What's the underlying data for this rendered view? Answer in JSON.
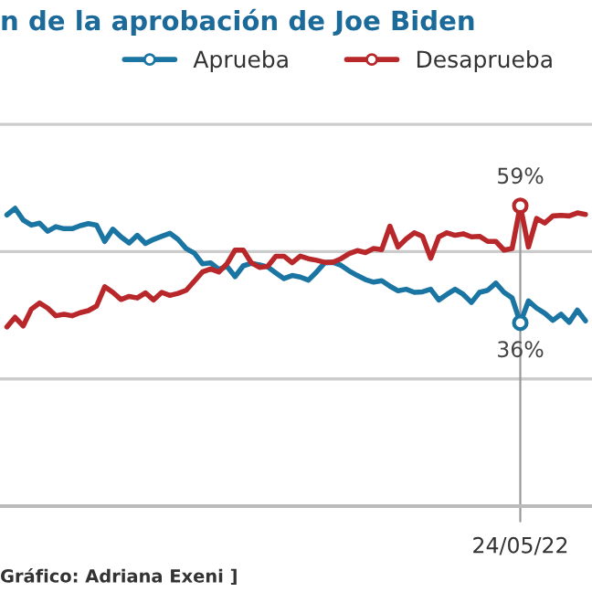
{
  "chart_data": {
    "type": "line",
    "title": "n de la aprobación de Joe Biden",
    "categories": [
      null,
      null,
      null,
      null,
      null,
      null,
      null,
      null,
      null,
      null,
      null,
      null,
      null,
      null,
      null,
      null,
      null,
      null,
      null,
      null,
      null,
      null,
      null,
      null,
      null,
      null,
      null,
      null,
      null,
      null,
      null,
      null,
      null,
      null,
      null,
      null,
      null,
      null,
      null,
      null,
      null,
      null,
      null,
      null,
      null,
      null,
      null,
      null,
      null,
      null,
      null,
      null,
      null,
      null,
      null,
      null,
      null,
      null,
      null,
      null,
      null,
      null,
      null,
      null,
      null,
      null,
      null,
      null,
      null,
      null,
      null,
      null
    ],
    "series": [
      {
        "name": "Aprueba",
        "color": "#1b75a3",
        "values": [
          57.2,
          58.5,
          56.2,
          55.2,
          55.6,
          54.0,
          54.9,
          54.5,
          54.5,
          55.1,
          55.5,
          55.2,
          52.0,
          54.4,
          52.9,
          51.7,
          53.2,
          51.6,
          52.4,
          53.0,
          53.6,
          52.4,
          50.6,
          49.7,
          47.6,
          47.8,
          46.5,
          47.1,
          45.1,
          47.2,
          47.7,
          47.4,
          47.0,
          45.8,
          44.7,
          45.3,
          45.0,
          44.4,
          46.0,
          47.8,
          47.9,
          47.3,
          46.2,
          45.3,
          44.5,
          44.0,
          44.3,
          43.2,
          42.3,
          42.6,
          42.0,
          42.1,
          42.6,
          40.5,
          41.6,
          42.6,
          41.6,
          40.0,
          42.0,
          42.4,
          43.8,
          42.0,
          40.9,
          36,
          40.3,
          38.9,
          37.9,
          36.5,
          37.7,
          36.1,
          38.5,
          36.4
        ],
        "value_labels": [
          null,
          null,
          null,
          null,
          null,
          null,
          null,
          null,
          null,
          null,
          null,
          null,
          null,
          null,
          null,
          null,
          null,
          null,
          null,
          null,
          null,
          null,
          null,
          null,
          null,
          null,
          null,
          null,
          null,
          null,
          null,
          null,
          null,
          null,
          null,
          null,
          null,
          null,
          null,
          null,
          null,
          null,
          null,
          null,
          null,
          null,
          null,
          null,
          null,
          null,
          null,
          null,
          null,
          null,
          null,
          null,
          null,
          null,
          null,
          null,
          null,
          null,
          null,
          "36%",
          null,
          null,
          null,
          null,
          null,
          null,
          null,
          null
        ]
      },
      {
        "name": "Desaprueba",
        "color": "#b8282a",
        "values": [
          35.2,
          37.1,
          35.4,
          38.7,
          39.9,
          38.9,
          37.4,
          37.7,
          37.4,
          38.0,
          38.4,
          39.3,
          43.1,
          42.0,
          40.6,
          41.2,
          40.9,
          41.9,
          40.5,
          42.0,
          41.4,
          41.8,
          42.4,
          44.2,
          46.0,
          46.6,
          46.0,
          47.6,
          50.3,
          50.3,
          47.8,
          46.9,
          47.1,
          49.1,
          49.1,
          47.8,
          49.1,
          48.6,
          48.3,
          47.9,
          47.9,
          48.6,
          49.6,
          50.2,
          49.8,
          50.6,
          50.4,
          55.0,
          50.9,
          52.5,
          53.7,
          53.0,
          48.7,
          52.9,
          53.7,
          53.2,
          53.5,
          52.9,
          53.0,
          52.0,
          52.0,
          50.3,
          50.6,
          59,
          50.9,
          56.5,
          55.6,
          57.0,
          57.1,
          57.0,
          57.6,
          57.3
        ],
        "value_labels": [
          null,
          null,
          null,
          null,
          null,
          null,
          null,
          null,
          null,
          null,
          null,
          null,
          null,
          null,
          null,
          null,
          null,
          null,
          null,
          null,
          null,
          null,
          null,
          null,
          null,
          null,
          null,
          null,
          null,
          null,
          null,
          null,
          null,
          null,
          null,
          null,
          null,
          null,
          null,
          null,
          null,
          null,
          null,
          null,
          null,
          null,
          null,
          null,
          null,
          null,
          null,
          null,
          null,
          null,
          null,
          null,
          null,
          null,
          null,
          null,
          null,
          null,
          null,
          "59%",
          null,
          null,
          null,
          null,
          null,
          null,
          null,
          null
        ]
      }
    ],
    "ylim": [
      0,
      75
    ],
    "ref_lines": [
      {
        "axis": "y",
        "value": 25,
        "color": "#cccccc"
      },
      {
        "axis": "y",
        "value": 50,
        "color": "#cccccc"
      },
      {
        "axis": "y",
        "value": 75,
        "color": "#cccccc"
      }
    ],
    "legend": "top right",
    "line_style": "solid",
    "annotations": [
      "Gráfico: Adriana Exeni ]",
      "24/05/22"
    ]
  }
}
